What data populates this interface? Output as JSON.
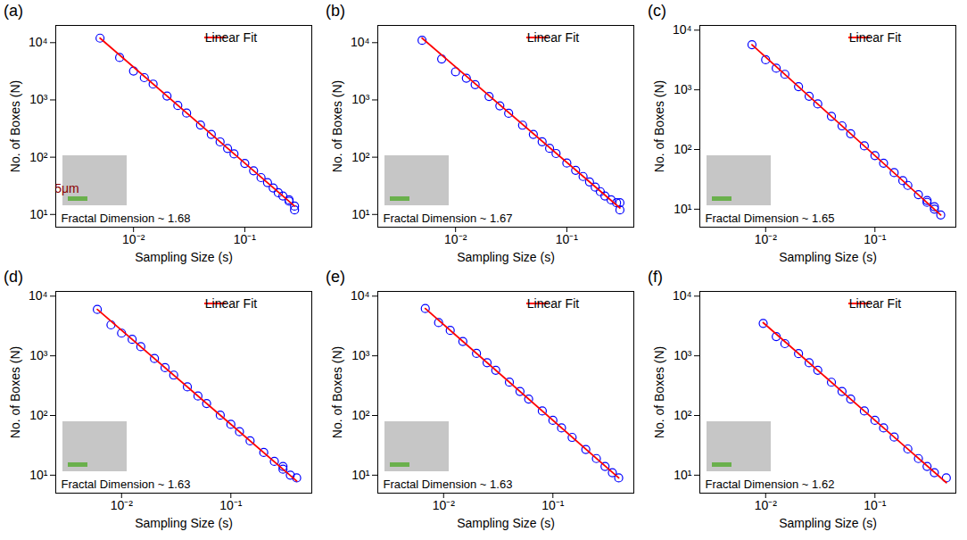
{
  "chart_data": [
    {
      "type": "scatter",
      "title": "(a)",
      "x_label": "Sampling Size (s)",
      "y_label": "No. of Boxes (N)",
      "log": true,
      "grid": false,
      "legend": "upper right",
      "annotation": "Fractal Dimension ~ 1.68",
      "scale_bar_label": "5μm",
      "xlim": [
        0.002,
        0.4
      ],
      "ylim": [
        6,
        20000
      ],
      "xticks": [
        {
          "value": 0.01,
          "label": "10⁻²"
        },
        {
          "value": 0.1,
          "label": "10⁻¹"
        }
      ],
      "yticks": [
        {
          "value": 10,
          "label": "10¹"
        },
        {
          "value": 100,
          "label": "10²"
        },
        {
          "value": 1000,
          "label": "10³"
        },
        {
          "value": 10000,
          "label": "10⁴"
        }
      ],
      "series": [
        {
          "type": "scatter",
          "marker": "circle",
          "color": "#0000ff",
          "x": [
            0.005,
            0.0075,
            0.01,
            0.0125,
            0.015,
            0.02,
            0.025,
            0.03,
            0.04,
            0.05,
            0.06,
            0.07,
            0.08,
            0.1,
            0.12,
            0.14,
            0.16,
            0.18,
            0.2,
            0.22,
            0.25,
            0.25,
            0.28,
            0.28
          ],
          "values": [
            12000,
            5500,
            3200,
            2450,
            1890,
            1170,
            800,
            590,
            365,
            250,
            185,
            142,
            114,
            78,
            58,
            44,
            36,
            29,
            24,
            21,
            17,
            18,
            14,
            12
          ]
        },
        {
          "name": "Linear Fit",
          "type": "line",
          "line_style": "solid",
          "color": "#ff0000",
          "x": [
            0.005,
            0.28
          ],
          "values": [
            12000,
            14
          ]
        }
      ]
    },
    {
      "type": "scatter",
      "title": "(b)",
      "x_label": "Sampling Size (s)",
      "y_label": "No. of Boxes (N)",
      "log": true,
      "grid": false,
      "legend": "upper right",
      "annotation": "Fractal Dimension ~ 1.67",
      "xlim": [
        0.002,
        0.4
      ],
      "ylim": [
        6,
        20000
      ],
      "xticks": [
        {
          "value": 0.01,
          "label": "10⁻²"
        },
        {
          "value": 0.1,
          "label": "10⁻¹"
        }
      ],
      "yticks": [
        {
          "value": 10,
          "label": "10¹"
        },
        {
          "value": 100,
          "label": "10²"
        },
        {
          "value": 1000,
          "label": "10³"
        },
        {
          "value": 10000,
          "label": "10⁴"
        }
      ],
      "series": [
        {
          "type": "scatter",
          "marker": "circle",
          "color": "#0000ff",
          "x": [
            0.005,
            0.0075,
            0.01,
            0.0125,
            0.015,
            0.02,
            0.025,
            0.03,
            0.04,
            0.05,
            0.06,
            0.07,
            0.08,
            0.1,
            0.12,
            0.14,
            0.16,
            0.18,
            0.2,
            0.22,
            0.25,
            0.28,
            0.3,
            0.3
          ],
          "values": [
            11000,
            5200,
            3100,
            2400,
            1850,
            1150,
            790,
            585,
            362,
            250,
            186,
            143,
            116,
            79,
            59,
            46,
            37,
            30,
            25,
            21,
            18,
            16,
            16,
            12
          ]
        },
        {
          "name": "Linear Fit",
          "type": "line",
          "line_style": "solid",
          "color": "#ff0000",
          "x": [
            0.005,
            0.3
          ],
          "values": [
            12000,
            13
          ]
        }
      ]
    },
    {
      "type": "scatter",
      "title": "(c)",
      "x_label": "Sampling Size (s)",
      "y_label": "No. of Boxes (N)",
      "log": true,
      "grid": false,
      "legend": "upper right",
      "annotation": "Fractal Dimension ~ 1.65",
      "xlim": [
        0.0025,
        0.55
      ],
      "ylim": [
        5,
        12000
      ],
      "xticks": [
        {
          "value": 0.01,
          "label": "10⁻²"
        },
        {
          "value": 0.1,
          "label": "10⁻¹"
        }
      ],
      "yticks": [
        {
          "value": 10,
          "label": "10¹"
        },
        {
          "value": 100,
          "label": "10²"
        },
        {
          "value": 1000,
          "label": "10³"
        },
        {
          "value": 10000,
          "label": "10⁴"
        }
      ],
      "series": [
        {
          "type": "scatter",
          "marker": "circle",
          "color": "#0000ff",
          "x": [
            0.0075,
            0.01,
            0.0125,
            0.015,
            0.02,
            0.025,
            0.03,
            0.04,
            0.05,
            0.06,
            0.08,
            0.1,
            0.12,
            0.15,
            0.18,
            0.2,
            0.25,
            0.3,
            0.3,
            0.35,
            0.35,
            0.4
          ],
          "values": [
            5700,
            3200,
            2300,
            1820,
            1130,
            780,
            580,
            360,
            249,
            184,
            115,
            79,
            59,
            41,
            30,
            25,
            17.5,
            13,
            14,
            10,
            11,
            8
          ]
        },
        {
          "name": "Linear Fit",
          "type": "line",
          "line_style": "solid",
          "color": "#ff0000",
          "x": [
            0.0075,
            0.4
          ],
          "values": [
            5700,
            8
          ]
        }
      ]
    },
    {
      "type": "scatter",
      "title": "(d)",
      "x_label": "Sampling Size (s)",
      "y_label": "No. of Boxes (N)",
      "log": true,
      "grid": false,
      "legend": "upper right",
      "annotation": "Fractal Dimension ~ 1.63",
      "xlim": [
        0.0025,
        0.55
      ],
      "ylim": [
        5,
        12000
      ],
      "xticks": [
        {
          "value": 0.01,
          "label": "10⁻²"
        },
        {
          "value": 0.1,
          "label": "10⁻¹"
        }
      ],
      "yticks": [
        {
          "value": 10,
          "label": "10¹"
        },
        {
          "value": 100,
          "label": "10²"
        },
        {
          "value": 1000,
          "label": "10³"
        },
        {
          "value": 10000,
          "label": "10⁴"
        }
      ],
      "series": [
        {
          "type": "scatter",
          "marker": "circle",
          "color": "#0000ff",
          "x": [
            0.006,
            0.008,
            0.01,
            0.0125,
            0.015,
            0.02,
            0.025,
            0.03,
            0.04,
            0.05,
            0.06,
            0.08,
            0.1,
            0.12,
            0.15,
            0.2,
            0.25,
            0.3,
            0.3,
            0.35,
            0.4
          ],
          "values": [
            6000,
            3300,
            2400,
            1890,
            1420,
            900,
            633,
            475,
            302,
            212,
            159,
            101,
            71,
            53.5,
            37.6,
            24,
            17,
            12.6,
            14,
            10,
            9
          ]
        },
        {
          "name": "Linear Fit",
          "type": "line",
          "line_style": "solid",
          "color": "#ff0000",
          "x": [
            0.006,
            0.4
          ],
          "values": [
            6000,
            8
          ]
        }
      ]
    },
    {
      "type": "scatter",
      "title": "(e)",
      "x_label": "Sampling Size (s)",
      "y_label": "No. of Boxes (N)",
      "log": true,
      "grid": false,
      "legend": "upper right",
      "annotation": "Fractal Dimension ~ 1.63",
      "xlim": [
        0.0025,
        0.55
      ],
      "ylim": [
        5,
        12000
      ],
      "xticks": [
        {
          "value": 0.01,
          "label": "10⁻²"
        },
        {
          "value": 0.1,
          "label": "10⁻¹"
        }
      ],
      "yticks": [
        {
          "value": 10,
          "label": "10¹"
        },
        {
          "value": 100,
          "label": "10²"
        },
        {
          "value": 1000,
          "label": "10³"
        },
        {
          "value": 10000,
          "label": "10⁴"
        }
      ],
      "series": [
        {
          "type": "scatter",
          "marker": "circle",
          "color": "#0000ff",
          "x": [
            0.0068,
            0.009,
            0.0115,
            0.015,
            0.02,
            0.025,
            0.03,
            0.04,
            0.05,
            0.06,
            0.08,
            0.1,
            0.12,
            0.15,
            0.2,
            0.25,
            0.3,
            0.35,
            0.4
          ],
          "values": [
            6200,
            3600,
            2670,
            1740,
            1100,
            768,
            573,
            362,
            253,
            189,
            119,
            83,
            62,
            43,
            27,
            19,
            14,
            11,
            9
          ]
        },
        {
          "name": "Linear Fit",
          "type": "line",
          "line_style": "solid",
          "color": "#ff0000",
          "x": [
            0.0068,
            0.4
          ],
          "values": [
            6200,
            9
          ]
        }
      ]
    },
    {
      "type": "scatter",
      "title": "(f)",
      "x_label": "Sampling Size (s)",
      "y_label": "No. of Boxes (N)",
      "log": true,
      "grid": false,
      "legend": "upper right",
      "annotation": "Fractal Dimension ~ 1.62",
      "xlim": [
        0.0025,
        0.55
      ],
      "ylim": [
        5,
        12000
      ],
      "xticks": [
        {
          "value": 0.01,
          "label": "10⁻²"
        },
        {
          "value": 0.1,
          "label": "10⁻¹"
        }
      ],
      "yticks": [
        {
          "value": 10,
          "label": "10¹"
        },
        {
          "value": 100,
          "label": "10²"
        },
        {
          "value": 1000,
          "label": "10³"
        },
        {
          "value": 10000,
          "label": "10⁴"
        }
      ],
      "series": [
        {
          "type": "scatter",
          "marker": "circle",
          "color": "#0000ff",
          "x": [
            0.0095,
            0.0125,
            0.015,
            0.02,
            0.025,
            0.03,
            0.04,
            0.05,
            0.06,
            0.08,
            0.1,
            0.12,
            0.15,
            0.2,
            0.25,
            0.3,
            0.35,
            0.45
          ],
          "values": [
            3500,
            2100,
            1600,
            1090,
            766,
            572,
            361,
            253,
            189,
            119,
            83,
            62,
            43.5,
            27.5,
            19,
            14,
            11,
            9
          ]
        },
        {
          "name": "Linear Fit",
          "type": "line",
          "line_style": "solid",
          "color": "#ff0000",
          "x": [
            0.0095,
            0.45
          ],
          "values": [
            3600,
            7.5
          ]
        }
      ]
    }
  ]
}
